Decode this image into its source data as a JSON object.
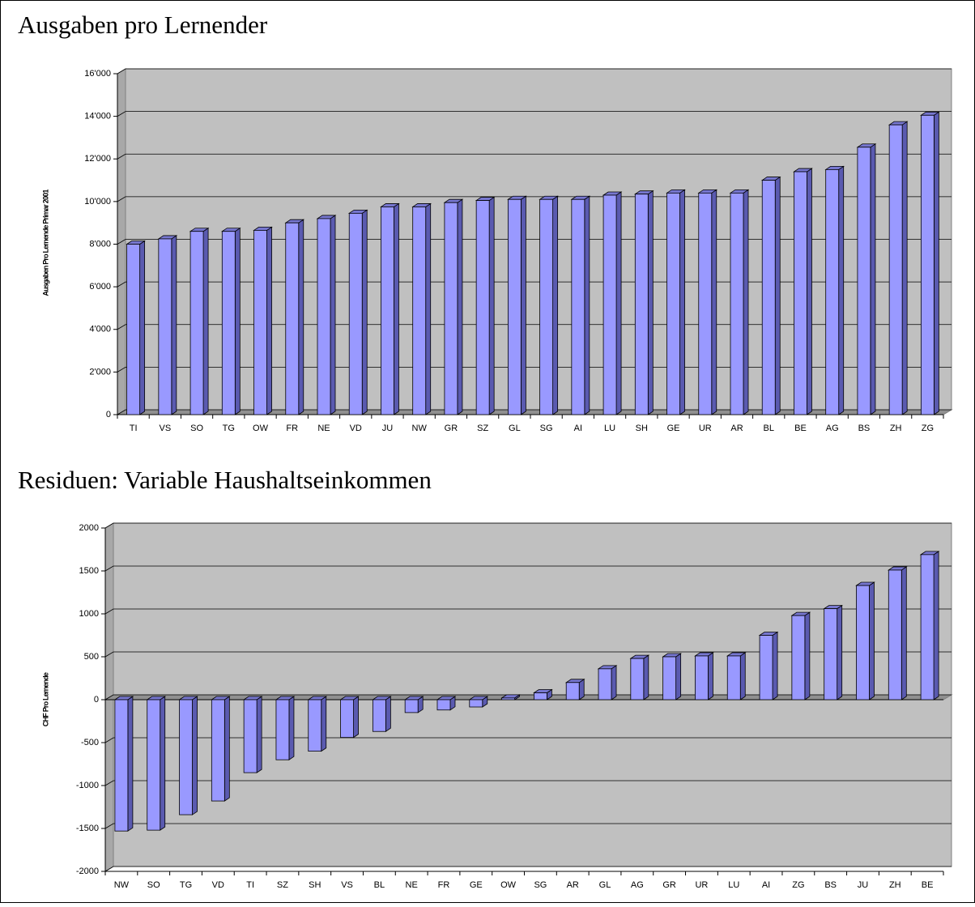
{
  "chart_data": [
    {
      "type": "bar",
      "title": "Ausgaben pro Lernender",
      "y_label": "Ausgaben Pro Lernende Primar 2001",
      "categories": [
        "TI",
        "VS",
        "SO",
        "TG",
        "OW",
        "FR",
        "NE",
        "VD",
        "JU",
        "NW",
        "GR",
        "SZ",
        "GL",
        "SG",
        "AI",
        "LU",
        "SH",
        "GE",
        "UR",
        "AR",
        "BL",
        "BE",
        "AG",
        "BS",
        "ZH",
        "ZG"
      ],
      "values": [
        8000,
        8250,
        8600,
        8600,
        8650,
        9000,
        9200,
        9450,
        9750,
        9750,
        9950,
        10050,
        10100,
        10100,
        10100,
        10300,
        10350,
        10400,
        10400,
        10400,
        11000,
        11400,
        11500,
        12550,
        13600,
        14050
      ],
      "color": "#9999ff",
      "ylim": [
        0,
        16000
      ],
      "yticks": [
        0,
        {
          "value": 2000,
          "label": "2'000"
        },
        {
          "value": 4000,
          "label": "4'000"
        },
        {
          "value": 6000,
          "label": "6'000"
        },
        {
          "value": 8000,
          "label": "8'000"
        },
        {
          "value": 10000,
          "label": "10'000"
        },
        {
          "value": 12000,
          "label": "12'000"
        },
        {
          "value": 14000,
          "label": "14'000"
        },
        {
          "value": 16000,
          "label": "16'000"
        }
      ],
      "grid": true
    },
    {
      "type": "bar",
      "title": "Residuen: Variable Haushaltseinkommen",
      "y_label": "CHF Pro Lernende",
      "categories": [
        "NW",
        "SO",
        "TG",
        "VD",
        "TI",
        "SZ",
        "SH",
        "VS",
        "BL",
        "NE",
        "FR",
        "GE",
        "OW",
        "SG",
        "AR",
        "GL",
        "AG",
        "GR",
        "UR",
        "LU",
        "AI",
        "ZG",
        "BS",
        "JU",
        "ZH",
        "BE"
      ],
      "values": [
        -1530,
        -1520,
        -1340,
        -1180,
        -850,
        -700,
        -600,
        -440,
        -370,
        -150,
        -120,
        -85,
        20,
        80,
        200,
        360,
        480,
        500,
        510,
        510,
        750,
        980,
        1060,
        1330,
        1510,
        1690
      ],
      "color": "#9999ff",
      "ylim": [
        -2000,
        2000
      ],
      "yticks": [
        -2000,
        -1500,
        -1000,
        -500,
        0,
        500,
        1000,
        1500,
        2000
      ],
      "grid": true
    }
  ]
}
